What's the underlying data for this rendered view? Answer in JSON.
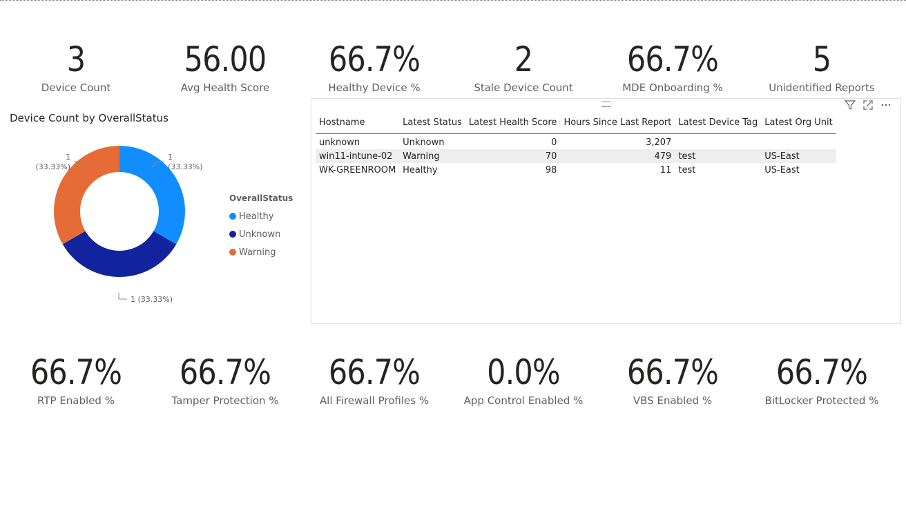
{
  "kpis_top": [
    {
      "value": "3",
      "label": "Device Count"
    },
    {
      "value": "56.00",
      "label": "Avg Health Score"
    },
    {
      "value": "66.7%",
      "label": "Healthy Device %"
    },
    {
      "value": "2",
      "label": "Stale Device Count"
    },
    {
      "value": "66.7%",
      "label": "MDE Onboarding %"
    },
    {
      "value": "5",
      "label": "Unidentified Reports"
    }
  ],
  "kpis_bottom": [
    {
      "value": "66.7%",
      "label": "RTP Enabled %"
    },
    {
      "value": "66.7%",
      "label": "Tamper Protection %"
    },
    {
      "value": "66.7%",
      "label": "All Firewall Profiles %"
    },
    {
      "value": "0.0%",
      "label": "App Control Enabled %"
    },
    {
      "value": "66.7%",
      "label": "VBS Enabled %"
    },
    {
      "value": "66.7%",
      "label": "BitLocker Protected %"
    }
  ],
  "chart_data": {
    "type": "pie",
    "title": "Device Count by OverallStatus",
    "legend_title": "OverallStatus",
    "legend_position": "right",
    "categories": [
      "Healthy",
      "Unknown",
      "Warning"
    ],
    "values": [
      1,
      1,
      1
    ],
    "data_labels": [
      "1 (33.33%)",
      "1 (33.33%)",
      "1 (33.33%)"
    ],
    "colors": [
      "#118DFF",
      "#12239E",
      "#E66C37"
    ]
  },
  "table": {
    "columns": [
      "Hostname",
      "Latest Status",
      "Latest Health Score",
      "Hours Since Last Report",
      "Latest Device Tag",
      "Latest Org Unit"
    ],
    "rows": [
      [
        "unknown",
        "Unknown",
        "0",
        "3,207",
        "",
        ""
      ],
      [
        "win11-intune-02",
        "Warning",
        "70",
        "479",
        "test",
        "US-East"
      ],
      [
        "WK-GREENROOM",
        "Healthy",
        "98",
        "11",
        "test",
        "US-East"
      ]
    ]
  },
  "icons": {
    "filter": "filter-icon",
    "focus": "focus-mode-icon",
    "more": "more-options-icon"
  }
}
